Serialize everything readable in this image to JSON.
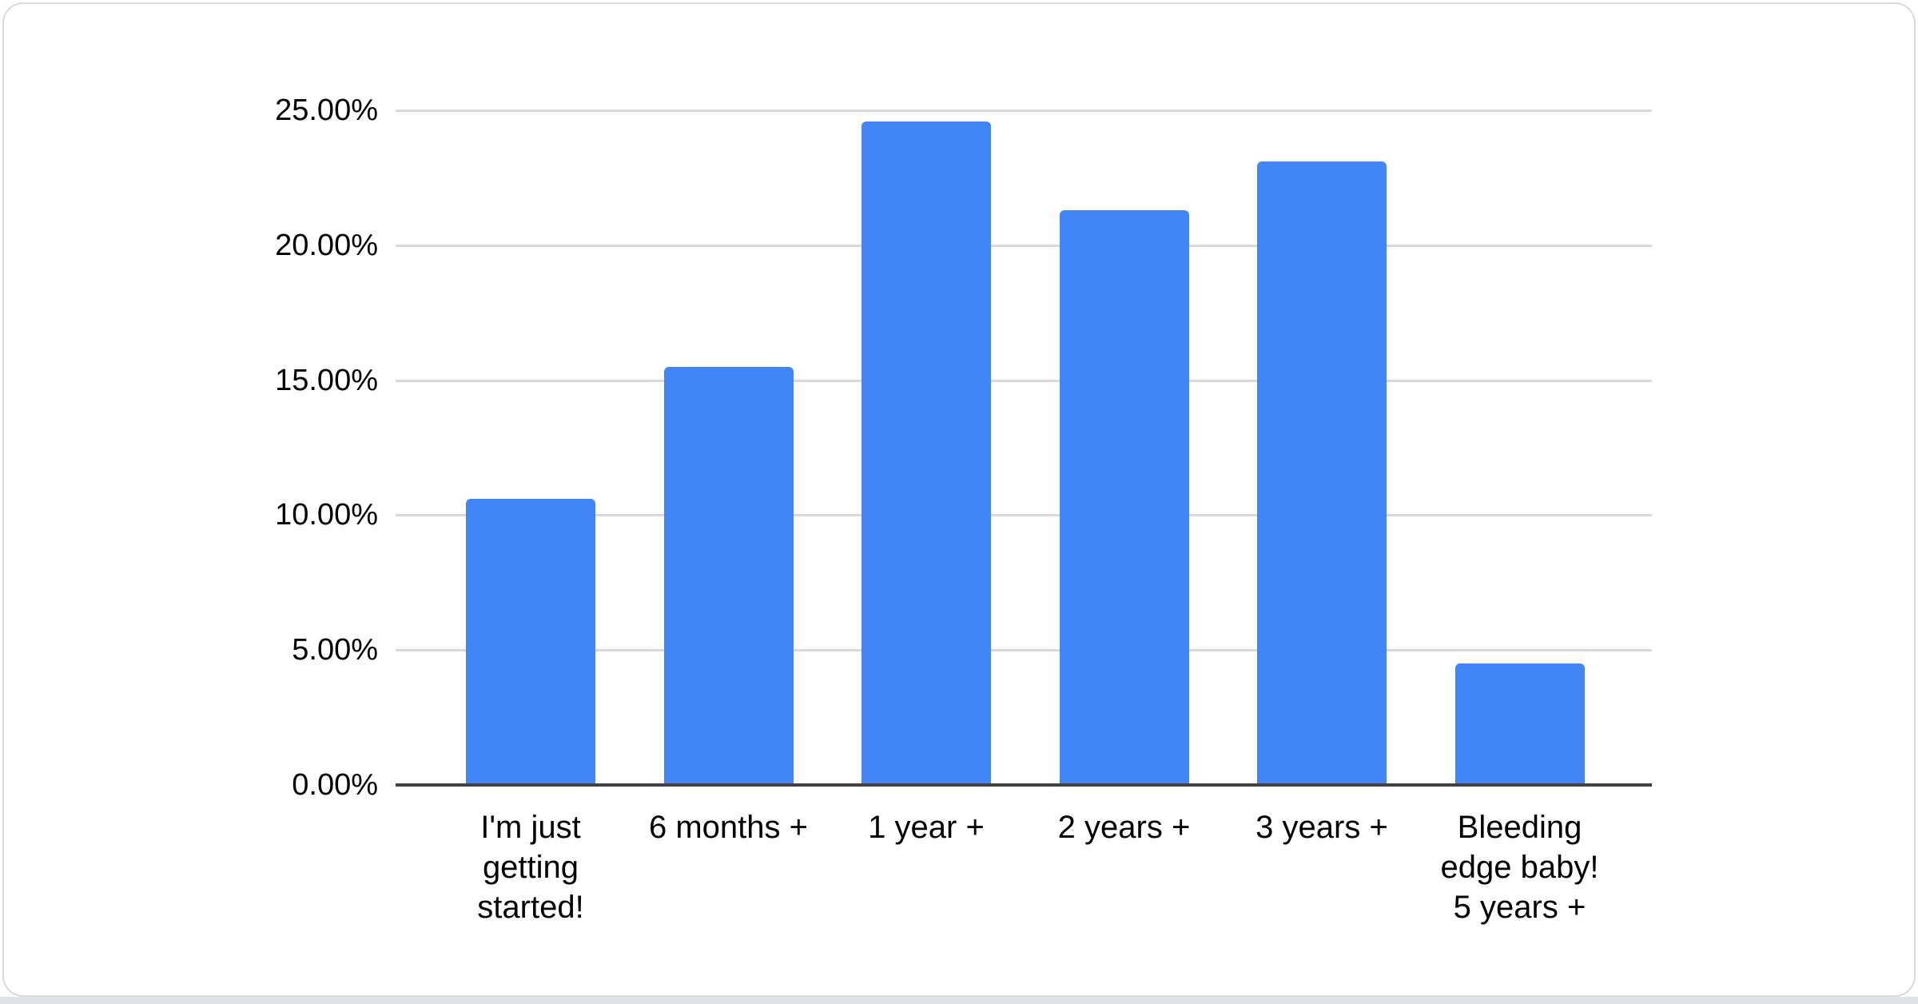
{
  "card": {
    "background": "#ffffff",
    "border_color": "#d8dade",
    "page_strip_color": "#dfe2e7"
  },
  "chart_data": {
    "type": "bar",
    "title": "",
    "xlabel": "",
    "ylabel": "",
    "categories": [
      "I'm just\ngetting\nstarted!",
      "6 months +",
      "1 year +",
      "2 years +",
      "3 years +",
      "Bleeding\nedge baby!\n5 years +"
    ],
    "values": [
      10.6,
      15.5,
      24.6,
      21.3,
      23.1,
      4.5
    ],
    "value_unit": "percent",
    "ylim": [
      0,
      25
    ],
    "y_tick_labels": [
      "0.00%",
      "5.00%",
      "10.00%",
      "15.00%",
      "20.00%",
      "25.00%"
    ],
    "y_tick_values": [
      0,
      5,
      10,
      15,
      20,
      25
    ],
    "grid": true,
    "legend": "none",
    "colors": {
      "bar": "#4285f4",
      "gridline": "#d9d9d9",
      "axis_line": "#424242",
      "label": "#000000"
    }
  }
}
